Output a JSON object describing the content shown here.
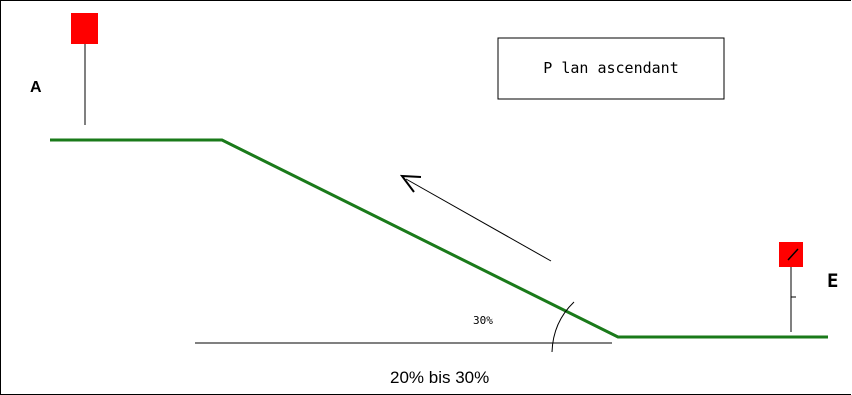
{
  "diagram": {
    "title": "P lan ascendant",
    "point_a": "A",
    "point_e": "E",
    "angle_label": "30%",
    "range_label": "20% bis 30%"
  },
  "colors": {
    "terrain": "#1a7a1a",
    "flag": "#ff0000",
    "line": "#000000",
    "background": "#ffffff"
  }
}
